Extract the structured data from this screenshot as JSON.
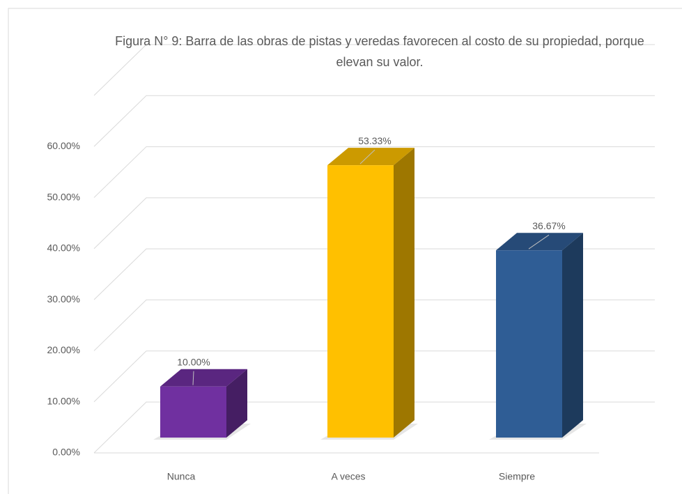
{
  "chart_data": {
    "type": "bar3d",
    "title": "Figura N° 9: Barra de las obras de pistas y veredas favorecen al costo de su propiedad, porque elevan su valor.",
    "categories": [
      "Nunca",
      "A veces",
      "Siempre"
    ],
    "values": [
      10,
      53.33,
      36.67
    ],
    "value_labels": [
      "10.00%",
      "53.33%",
      "36.67%"
    ],
    "colors": [
      "#7030a0",
      "#ffc000",
      "#2f5d95"
    ],
    "ylim": [
      0,
      70
    ],
    "yticks": [
      {
        "value": 0,
        "label": "0.00%"
      },
      {
        "value": 10,
        "label": "10.00%"
      },
      {
        "value": 20,
        "label": "20.00%"
      },
      {
        "value": 30,
        "label": "30.00%"
      },
      {
        "value": 40,
        "label": "40.00%"
      },
      {
        "value": 50,
        "label": "50.00%"
      },
      {
        "value": 60,
        "label": "60.00%"
      }
    ],
    "grid": true
  }
}
